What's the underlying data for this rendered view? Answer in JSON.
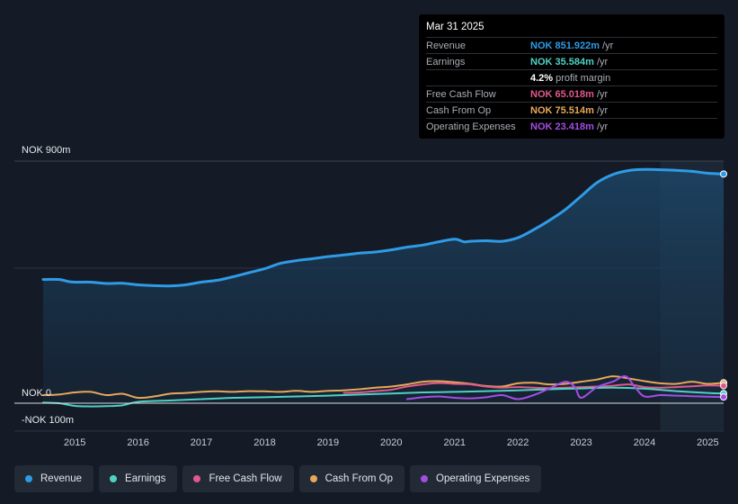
{
  "tooltip": {
    "date": "Mar 31 2025",
    "rows": [
      {
        "label": "Revenue",
        "value": "NOK 851.922m",
        "unit": "/yr",
        "color": "#2f9be6"
      },
      {
        "label": "Earnings",
        "value": "NOK 35.584m",
        "unit": "/yr",
        "color": "#4fd1c5"
      },
      {
        "label": "",
        "value": "4.2%",
        "unit": "profit margin",
        "color": "#ffffff"
      },
      {
        "label": "Free Cash Flow",
        "value": "NOK 65.018m",
        "unit": "/yr",
        "color": "#e0598b"
      },
      {
        "label": "Cash From Op",
        "value": "NOK 75.514m",
        "unit": "/yr",
        "color": "#e8a85a"
      },
      {
        "label": "Operating Expenses",
        "value": "NOK 23.418m",
        "unit": "/yr",
        "color": "#a34ee3"
      }
    ]
  },
  "legend": [
    {
      "label": "Revenue",
      "color": "#2f9be6"
    },
    {
      "label": "Earnings",
      "color": "#4fd1c5"
    },
    {
      "label": "Free Cash Flow",
      "color": "#e0598b"
    },
    {
      "label": "Cash From Op",
      "color": "#e8a85a"
    },
    {
      "label": "Operating Expenses",
      "color": "#a34ee3"
    }
  ],
  "chart_data": {
    "type": "line",
    "title": "",
    "y_labels": {
      "top": "NOK 900m",
      "zero": "NOK 0",
      "bottom": "-NOK 100m"
    },
    "ylim": [
      -100,
      900
    ],
    "xlim": [
      2014.5,
      2025.25
    ],
    "x_ticks": [
      "2015",
      "2016",
      "2017",
      "2018",
      "2019",
      "2020",
      "2021",
      "2022",
      "2023",
      "2024",
      "2025"
    ],
    "highlight_start": 2024.25,
    "series": [
      {
        "name": "Revenue",
        "color": "#2f9be6",
        "fill": true,
        "x": [
          2014.5,
          2014.75,
          2014.9,
          2015.0,
          2015.25,
          2015.5,
          2015.75,
          2016.0,
          2016.25,
          2016.5,
          2016.75,
          2017.0,
          2017.25,
          2017.5,
          2017.75,
          2018.0,
          2018.25,
          2018.5,
          2018.75,
          2019.0,
          2019.25,
          2019.5,
          2019.75,
          2020.0,
          2020.25,
          2020.5,
          2020.75,
          2021.0,
          2021.15,
          2021.25,
          2021.5,
          2021.75,
          2022.0,
          2022.25,
          2022.5,
          2022.75,
          2023.0,
          2023.25,
          2023.5,
          2023.75,
          2024.0,
          2024.25,
          2024.5,
          2024.75,
          2025.0,
          2025.25
        ],
        "y": [
          460,
          460,
          452,
          450,
          450,
          445,
          446,
          440,
          437,
          436,
          440,
          450,
          457,
          470,
          485,
          500,
          520,
          530,
          537,
          545,
          551,
          558,
          562,
          570,
          580,
          588,
          600,
          610,
          600,
          602,
          604,
          602,
          615,
          645,
          680,
          720,
          770,
          820,
          850,
          865,
          869,
          868,
          866,
          862,
          855,
          852
        ]
      },
      {
        "name": "Earnings",
        "color": "#4fd1c5",
        "fill": false,
        "x": [
          2014.5,
          2014.75,
          2015.0,
          2015.25,
          2015.5,
          2015.75,
          2016.0,
          2016.5,
          2017.0,
          2017.5,
          2018.0,
          2018.5,
          2019.0,
          2019.5,
          2020.0,
          2020.5,
          2021.0,
          2021.5,
          2022.0,
          2022.5,
          2023.0,
          2023.5,
          2024.0,
          2024.5,
          2025.0,
          2025.25
        ],
        "y": [
          2,
          0,
          -10,
          -12,
          -11,
          -8,
          5,
          10,
          15,
          20,
          22,
          25,
          28,
          32,
          36,
          40,
          42,
          45,
          48,
          52,
          55,
          58,
          54,
          45,
          38,
          36
        ]
      },
      {
        "name": "Free Cash Flow",
        "color": "#e0598b",
        "fill": false,
        "x": [
          2019.25,
          2019.5,
          2019.75,
          2020.0,
          2020.25,
          2020.5,
          2020.75,
          2021.0,
          2021.25,
          2021.5,
          2021.75,
          2022.0,
          2022.25,
          2022.5,
          2022.75,
          2023.0,
          2023.25,
          2023.5,
          2023.75,
          2024.0,
          2024.25,
          2024.5,
          2024.75,
          2025.0,
          2025.25
        ],
        "y": [
          38,
          40,
          45,
          50,
          62,
          70,
          75,
          72,
          70,
          62,
          58,
          60,
          58,
          56,
          58,
          60,
          62,
          65,
          70,
          60,
          58,
          60,
          63,
          66,
          65
        ]
      },
      {
        "name": "Cash From Op",
        "color": "#e8a85a",
        "fill": false,
        "x": [
          2014.5,
          2014.75,
          2015.0,
          2015.25,
          2015.5,
          2015.75,
          2016.0,
          2016.25,
          2016.5,
          2016.75,
          2017.0,
          2017.25,
          2017.5,
          2017.75,
          2018.0,
          2018.25,
          2018.5,
          2018.75,
          2019.0,
          2019.25,
          2019.5,
          2019.75,
          2020.0,
          2020.25,
          2020.5,
          2020.75,
          2021.0,
          2021.25,
          2021.5,
          2021.75,
          2022.0,
          2022.25,
          2022.5,
          2022.75,
          2023.0,
          2023.25,
          2023.5,
          2023.75,
          2024.0,
          2024.25,
          2024.5,
          2024.75,
          2025.0,
          2025.25
        ],
        "y": [
          30,
          32,
          40,
          42,
          30,
          35,
          20,
          25,
          35,
          38,
          42,
          44,
          42,
          45,
          44,
          42,
          46,
          42,
          46,
          48,
          52,
          58,
          62,
          70,
          80,
          82,
          78,
          72,
          64,
          62,
          74,
          76,
          70,
          72,
          80,
          88,
          100,
          92,
          82,
          74,
          72,
          80,
          72,
          76
        ]
      },
      {
        "name": "Operating Expenses",
        "color": "#a34ee3",
        "fill": false,
        "x": [
          2020.25,
          2020.5,
          2020.75,
          2021.0,
          2021.25,
          2021.5,
          2021.75,
          2022.0,
          2022.25,
          2022.5,
          2022.75,
          2022.9,
          2023.0,
          2023.25,
          2023.5,
          2023.7,
          2023.85,
          2024.0,
          2024.25,
          2024.5,
          2024.75,
          2025.0,
          2025.25
        ],
        "y": [
          15,
          22,
          25,
          20,
          18,
          22,
          30,
          15,
          30,
          55,
          80,
          60,
          20,
          60,
          80,
          100,
          60,
          25,
          30,
          28,
          26,
          24,
          23
        ]
      }
    ]
  }
}
